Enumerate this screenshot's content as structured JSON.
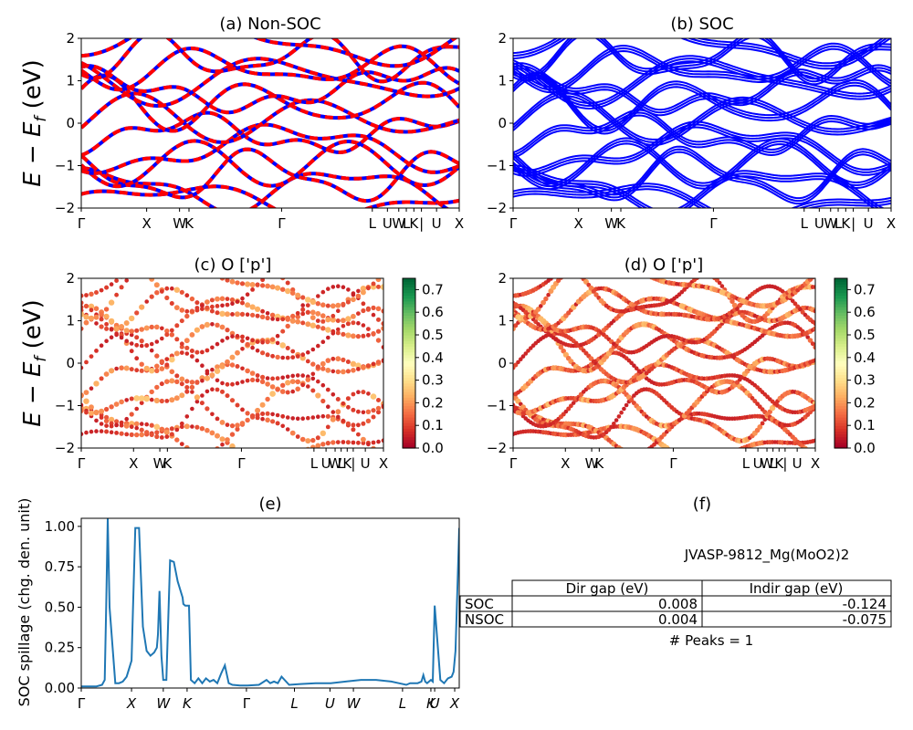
{
  "panels": {
    "a": {
      "title": "(a) Non-SOC"
    },
    "b": {
      "title": "(b) SOC"
    },
    "c": {
      "title": "(c)  O ['p']"
    },
    "d": {
      "title": "(d) O ['p']"
    },
    "e": {
      "title": "(e)"
    },
    "f": {
      "title": "(f)"
    }
  },
  "ylabel_main": "E − E_f (eV)",
  "ylabel_spillage": "SOC spillage (chg. den. unit)",
  "colors": {
    "nonsoc_primary": "#ff0000",
    "nonsoc_secondary": "#0000ff",
    "soc": "#0000ff",
    "spillage": "#1f77b4"
  },
  "colorbar": {
    "cmap": "RdYlGn",
    "ticks": [
      "0.0",
      "0.1",
      "0.2",
      "0.3",
      "0.4",
      "0.5",
      "0.6",
      "0.7"
    ],
    "range": [
      0,
      0.75
    ]
  },
  "table": {
    "material": "JVASP-9812_Mg(MoO2)2",
    "columns": [
      "Dir gap (eV)",
      "Indir gap (eV)"
    ],
    "rows": [
      {
        "label": "SOC",
        "dir": "0.008",
        "indir": "-0.124"
      },
      {
        "label": "NSOC",
        "dir": "0.004",
        "indir": "-0.075"
      }
    ],
    "peaks": "# Peaks = 1"
  },
  "chart_data": [
    {
      "type": "line",
      "panel": "a",
      "title": "(a) Non-SOC",
      "ylabel": "E − E_f (eV)",
      "ylim": [
        -2,
        2
      ],
      "yticks": [
        "−2",
        "−1",
        "0",
        "1",
        "2"
      ],
      "kpath_labels": [
        "Γ",
        "X",
        "W",
        "K",
        "Γ",
        "L",
        "U",
        "W",
        "L",
        "K",
        "|",
        "U",
        "X"
      ],
      "kpath_positions": [
        0,
        0.173,
        0.26,
        0.285,
        0.53,
        0.77,
        0.81,
        0.84,
        0.86,
        0.88,
        0.9,
        0.94,
        1.0
      ],
      "note": "bands drawn as red/blue dashed lines"
    },
    {
      "type": "line",
      "panel": "b",
      "title": "(b) SOC",
      "ylim": [
        -2,
        2
      ],
      "yticks": [
        "−2",
        "−1",
        "0",
        "1",
        "2"
      ],
      "kpath_labels": [
        "Γ",
        "X",
        "W",
        "K",
        "Γ",
        "L",
        "U",
        "W",
        "L",
        "K",
        "|",
        "U",
        "X"
      ],
      "kpath_positions": [
        0,
        0.173,
        0.26,
        0.285,
        0.53,
        0.77,
        0.81,
        0.84,
        0.86,
        0.88,
        0.9,
        0.94,
        1.0
      ]
    },
    {
      "type": "scatter",
      "panel": "c",
      "title": "(c)  O ['p']",
      "ylim": [
        -2,
        2
      ],
      "yticks": [
        "−2",
        "−1",
        "0",
        "1",
        "2"
      ],
      "kpath_labels": [
        "Γ",
        "X",
        "W",
        "K",
        "Γ",
        "L",
        "U",
        "W",
        "L",
        "K",
        "|",
        "U",
        "X"
      ],
      "kpath_positions": [
        0,
        0.173,
        0.26,
        0.285,
        0.53,
        0.77,
        0.81,
        0.84,
        0.86,
        0.88,
        0.9,
        0.94,
        1.0
      ]
    },
    {
      "type": "scatter",
      "panel": "d",
      "title": "(d) O ['p']",
      "ylim": [
        -2,
        2
      ],
      "yticks": [
        "−2",
        "−1",
        "0",
        "1",
        "2"
      ],
      "kpath_labels": [
        "Γ",
        "X",
        "W",
        "K",
        "Γ",
        "L",
        "U",
        "W",
        "L",
        "K",
        "|",
        "U",
        "X"
      ],
      "kpath_positions": [
        0,
        0.173,
        0.26,
        0.285,
        0.53,
        0.77,
        0.81,
        0.84,
        0.86,
        0.88,
        0.9,
        0.94,
        1.0
      ]
    },
    {
      "type": "line",
      "panel": "e",
      "title": "(e)",
      "ylabel": "SOC spillage (chg. den. unit)",
      "ylim": [
        0,
        1.05
      ],
      "yticks": [
        "0.00",
        "0.25",
        "0.50",
        "0.75",
        "1.00"
      ],
      "ytick_values": [
        0,
        0.25,
        0.5,
        0.75,
        1.0
      ],
      "xlabels": [
        "Γ",
        "X",
        "W",
        "K",
        "Γ",
        "L",
        "U",
        "W",
        "L",
        "K",
        "U",
        "X"
      ],
      "xlabel_positions": [
        0,
        0.133,
        0.217,
        0.28,
        0.437,
        0.564,
        0.658,
        0.72,
        0.85,
        0.925,
        0.935,
        0.988
      ],
      "x": [
        0,
        0.02,
        0.04,
        0.055,
        0.062,
        0.066,
        0.07,
        0.075,
        0.09,
        0.1,
        0.11,
        0.12,
        0.133,
        0.137,
        0.143,
        0.153,
        0.163,
        0.173,
        0.183,
        0.193,
        0.2,
        0.203,
        0.207,
        0.212,
        0.217,
        0.225,
        0.235,
        0.245,
        0.255,
        0.268,
        0.27,
        0.275,
        0.285,
        0.29,
        0.3,
        0.31,
        0.32,
        0.33,
        0.34,
        0.35,
        0.36,
        0.37,
        0.38,
        0.39,
        0.4,
        0.42,
        0.44,
        0.47,
        0.49,
        0.5,
        0.51,
        0.52,
        0.53,
        0.55,
        0.58,
        0.62,
        0.66,
        0.7,
        0.74,
        0.78,
        0.8,
        0.82,
        0.84,
        0.86,
        0.87,
        0.88,
        0.89,
        0.9,
        0.905,
        0.91,
        0.915,
        0.925,
        0.93,
        0.935,
        0.95,
        0.96,
        0.97,
        0.98,
        0.985,
        0.99,
        0.995,
        1.0
      ],
      "y": [
        0.01,
        0.01,
        0.01,
        0.02,
        0.05,
        0.5,
        1.05,
        0.5,
        0.03,
        0.03,
        0.04,
        0.07,
        0.17,
        0.5,
        0.99,
        0.99,
        0.38,
        0.23,
        0.2,
        0.22,
        0.25,
        0.33,
        0.6,
        0.2,
        0.05,
        0.05,
        0.79,
        0.78,
        0.66,
        0.56,
        0.52,
        0.51,
        0.51,
        0.05,
        0.03,
        0.06,
        0.03,
        0.06,
        0.04,
        0.05,
        0.03,
        0.09,
        0.14,
        0.03,
        0.02,
        0.015,
        0.015,
        0.02,
        0.05,
        0.03,
        0.04,
        0.03,
        0.07,
        0.02,
        0.025,
        0.03,
        0.03,
        0.04,
        0.05,
        0.05,
        0.045,
        0.04,
        0.03,
        0.02,
        0.03,
        0.03,
        0.03,
        0.04,
        0.08,
        0.04,
        0.03,
        0.05,
        0.04,
        0.51,
        0.05,
        0.03,
        0.06,
        0.07,
        0.1,
        0.23,
        0.6,
        0.99
      ]
    }
  ]
}
